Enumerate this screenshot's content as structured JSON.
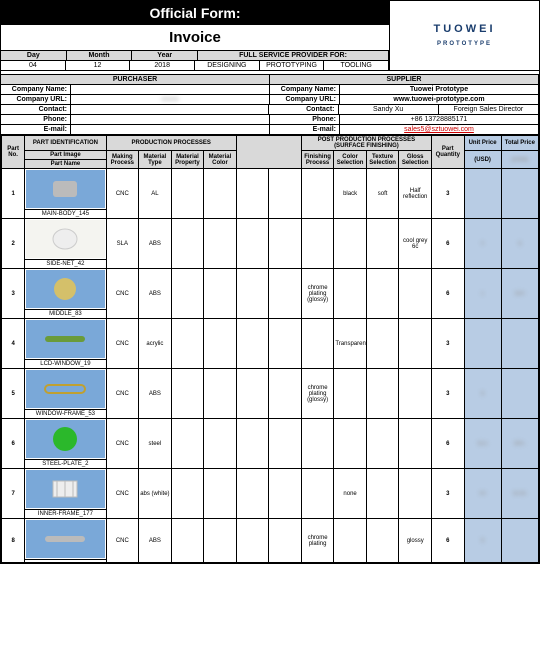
{
  "header": {
    "official": "Official Form:",
    "invoice": "Invoice",
    "logo_main": "TUOWEI",
    "logo_sub": "PROTOTYPE"
  },
  "date_headers": {
    "day": "Day",
    "month": "Month",
    "year": "Year",
    "full": "FULL SERVICE PROVIDER FOR:"
  },
  "date_vals": {
    "day": "04",
    "month": "12",
    "year": "2018",
    "s1": "DESIGNING",
    "s2": "PROTOTYPING",
    "s3": "TOOLING"
  },
  "sections": {
    "purchaser": "PURCHASER",
    "supplier": "SUPPLIER"
  },
  "labels": {
    "cname": "Company Name:",
    "curl": "Company URL:",
    "contact": "Contact:",
    "phone": "Phone:",
    "email": "E-mail:"
  },
  "purchaser": {
    "cname": "",
    "curl": "",
    "contact": "",
    "phone": "",
    "email": ""
  },
  "supplier": {
    "cname": "Tuowei Prototype",
    "curl": "www.tuowei-prototype.com",
    "contact_l": "Sandy Xu",
    "contact_r": "Foreign Sales Director",
    "phone": "+86 13728885171",
    "email": "sales5@sztuowei.com"
  },
  "cols": {
    "partno": "Part No.",
    "partid": "PART IDENTIFICATION",
    "prod": "PRODUCTION PROCESSES",
    "post": "POST PRODUCTION PROCESSES",
    "surf": "(SURFACE FINISHING)",
    "partimg": "Part Image",
    "partname": "Part Name",
    "making": "Making Process",
    "mtype": "Material Type",
    "mprop": "Material Property",
    "mcolor": "Material Color",
    "fin": "Finishing Process",
    "csel": "Color Selection",
    "tsel": "Texture Selection",
    "gsel": "Gloss Selection",
    "qty": "Part Quantity",
    "unit": "Unit Price",
    "total": "Total Price",
    "usd": "(USD)"
  },
  "rows": [
    {
      "no": "1",
      "name": "MAIN-BODY_145",
      "making": "CNC",
      "mtype": "AL",
      "fin": "",
      "csel": "black",
      "tsel": "soft",
      "gsel": "Half reflection",
      "qty": "3",
      "unit": "",
      "total": "",
      "imgbg": "#7aa8d8",
      "shape": "cyl-grey"
    },
    {
      "no": "2",
      "name": "SIDE-NET_42",
      "making": "SLA",
      "mtype": "ABS",
      "fin": "",
      "csel": "",
      "tsel": "",
      "gsel": "cool grey 6c",
      "qty": "6",
      "unit": "0",
      "total": "$",
      "imgbg": "#f4f4f0",
      "shape": "ring-white"
    },
    {
      "no": "3",
      "name": "MIDDLE_83",
      "making": "CNC",
      "mtype": "ABS",
      "fin": "chrome plating (glossy)",
      "csel": "",
      "tsel": "",
      "gsel": "",
      "qty": "6",
      "unit": "1",
      "total": "$30",
      "imgbg": "#7aa8d8",
      "shape": "disc-gold"
    },
    {
      "no": "4",
      "name": "LCD-WINDOW_19",
      "making": "CNC",
      "mtype": "acrylic",
      "fin": "",
      "csel": "Transparent",
      "tsel": "",
      "gsel": "",
      "qty": "3",
      "unit": "",
      "total": "",
      "imgbg": "#7aa8d8",
      "shape": "bar-green"
    },
    {
      "no": "5",
      "name": "WINDOW-FRAME_53",
      "making": "CNC",
      "mtype": "ABS",
      "fin": "chrome plating (glossy)",
      "csel": "",
      "tsel": "",
      "gsel": "",
      "qty": "3",
      "unit": "$",
      "total": "",
      "imgbg": "#7aa8d8",
      "shape": "bar-gold"
    },
    {
      "no": "6",
      "name": "STEEL-PLATE_2",
      "making": "CNC",
      "mtype": "steel",
      "fin": "",
      "csel": "",
      "tsel": "",
      "gsel": "",
      "qty": "6",
      "unit": "$15",
      "total": "$90.",
      "imgbg": "#7aa8d8",
      "shape": "disc-green"
    },
    {
      "no": "7",
      "name": "INNER-FRAME_177",
      "making": "CNC",
      "mtype": "abs (white)",
      "fin": "",
      "csel": "none",
      "tsel": "",
      "gsel": "",
      "qty": "3",
      "unit": "00",
      "total": "$195",
      "imgbg": "#7aa8d8",
      "shape": "cage"
    },
    {
      "no": "8",
      "name": "",
      "making": "CNC",
      "mtype": "ABS",
      "fin": "chrome plating",
      "csel": "",
      "tsel": "",
      "gsel": "glossy",
      "qty": "6",
      "unit": "$",
      "total": "",
      "imgbg": "#7aa8d8",
      "shape": "bar-grey"
    }
  ],
  "shapes": {
    "cyl-grey": "<svg width='40' height='28'><rect x='8' y='6' width='24' height='16' rx='3' fill='#bbb'/></svg>",
    "ring-white": "<svg width='40' height='28'><ellipse cx='20' cy='14' rx='12' ry='10' fill='#eee' stroke='#ccc'/></svg>",
    "disc-gold": "<svg width='40' height='28'><circle cx='20' cy='14' r='11' fill='#d4c06a'/></svg>",
    "bar-green": "<svg width='50' height='28'><rect x='5' y='11' width='40' height='6' rx='3' fill='#6a9b3a'/></svg>",
    "bar-gold": "<svg width='50' height='28'><rect x='5' y='10' width='40' height='8' rx='4' fill='none' stroke='#c0a030' stroke-width='2'/></svg>",
    "disc-green": "<svg width='40' height='28'><circle cx='20' cy='14' r='12' fill='#2bb82b'/></svg>",
    "cage": "<svg width='40' height='28'><rect x='8' y='6' width='24' height='16' fill='#eee' stroke='#bbb'/><line x1='12' y1='6' x2='12' y2='22' stroke='#bbb'/><line x1='20' y1='6' x2='20' y2='22' stroke='#bbb'/><line x1='28' y1='6' x2='28' y2='22' stroke='#bbb'/></svg>",
    "bar-grey": "<svg width='50' height='28'><rect x='5' y='11' width='40' height='6' rx='3' fill='#bbb'/></svg>"
  }
}
